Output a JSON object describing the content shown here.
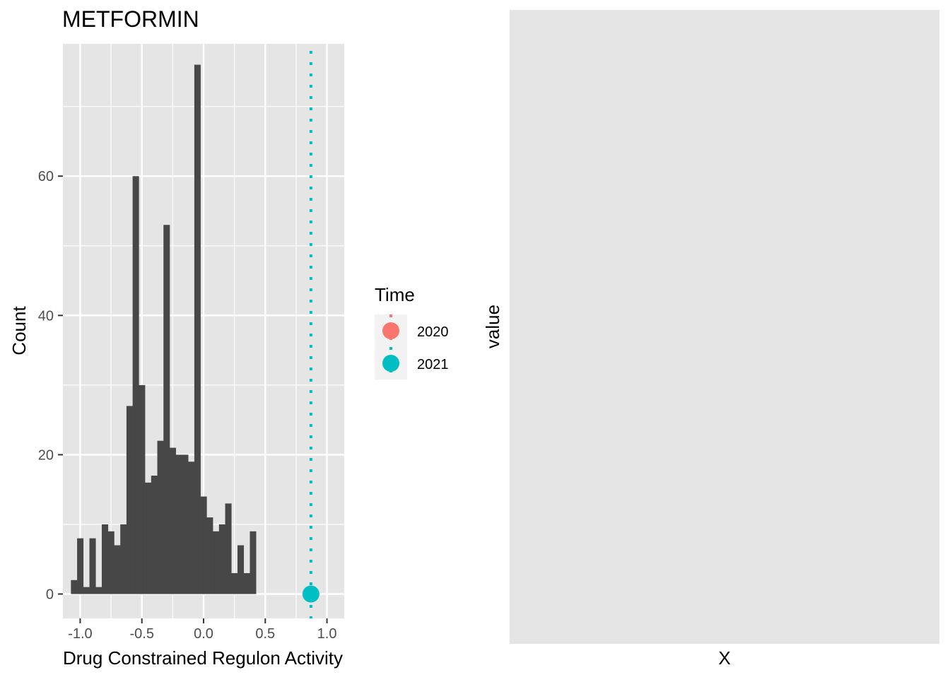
{
  "chart_data": [
    {
      "type": "bar",
      "title": "METFORMIN",
      "xlabel": "Drug Constrained Regulon Activity",
      "ylabel": "Count",
      "xlim": [
        -1.14,
        1.14
      ],
      "ylim": [
        -3.5,
        79
      ],
      "x_ticks": [
        -1.0,
        -0.5,
        0.0,
        0.5,
        1.0
      ],
      "x_tick_labels": [
        "-1.0",
        "-0.5",
        "0.0",
        "0.5",
        "1.0"
      ],
      "y_ticks": [
        0,
        20,
        40,
        60
      ],
      "y_tick_labels": [
        "0",
        "20",
        "40",
        "60"
      ],
      "grid": true,
      "bin_width": 0.05,
      "bin_centers": [
        -1.05,
        -1.0,
        -0.95,
        -0.9,
        -0.85,
        -0.8,
        -0.75,
        -0.7,
        -0.65,
        -0.6,
        -0.55,
        -0.5,
        -0.45,
        -0.4,
        -0.35,
        -0.3,
        -0.25,
        -0.2,
        -0.15,
        -0.1,
        -0.05,
        0.0,
        0.05,
        0.1,
        0.15,
        0.2,
        0.25,
        0.3,
        0.35,
        0.4,
        0.45,
        0.5,
        0.55,
        0.6,
        0.65,
        0.7,
        0.75,
        0.8,
        0.85,
        0.9,
        0.95,
        1.0
      ],
      "values": [
        2,
        8,
        1,
        8,
        1,
        10,
        9,
        7,
        10,
        27,
        60,
        30,
        16,
        17,
        22,
        53,
        21,
        20,
        20,
        19,
        76,
        14,
        11,
        9,
        10,
        13,
        3,
        7,
        3,
        9,
        0,
        0,
        0,
        0,
        0,
        0,
        0,
        0,
        0,
        0,
        0,
        0
      ],
      "vline": {
        "x": 0.87,
        "time": "2021",
        "style": "dotted"
      },
      "points": [
        {
          "x": 0.87,
          "y": 0,
          "time": "2021"
        }
      ],
      "legend": {
        "title": "Time",
        "placement": "right",
        "entries": [
          {
            "label": "2020",
            "color": "#F8766D"
          },
          {
            "label": "2021",
            "color": "#00BFC4"
          }
        ]
      }
    },
    {
      "type": "scatter",
      "title": "",
      "xlabel": "X",
      "ylabel": "value",
      "grid": false,
      "series": []
    }
  ],
  "colors": {
    "panel": "#E5E5E5",
    "grid": "#FFFFFF",
    "bar": "#474747",
    "axis_text": "#4D4D4D",
    "time_2020": "#F8766D",
    "time_2021": "#00BFC4"
  }
}
